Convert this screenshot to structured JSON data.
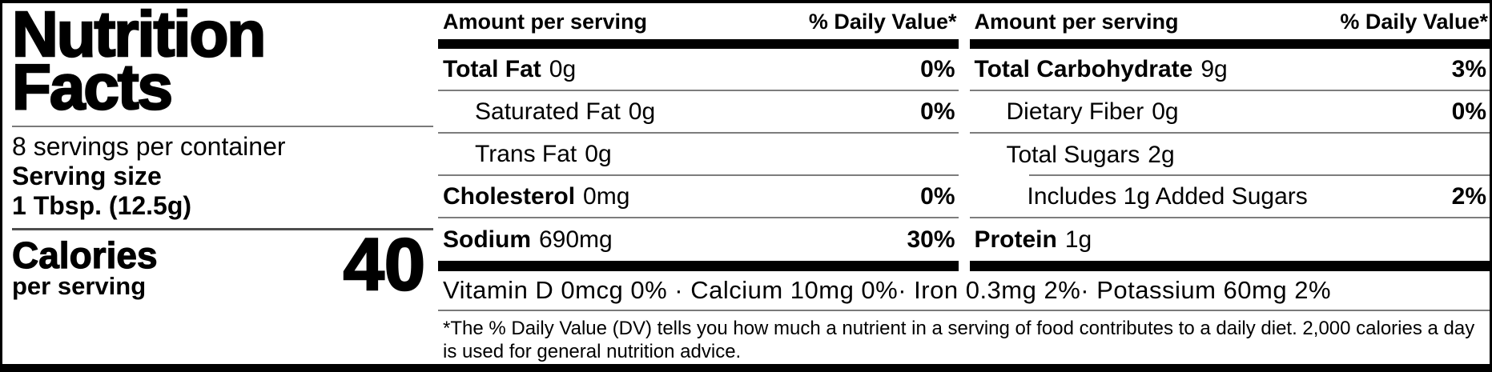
{
  "left_panel": {
    "title_line1": "Nutrition",
    "title_line2": "Facts",
    "servings_per_container": "8 servings per container",
    "serving_size_label": "Serving size",
    "serving_size_value": "1 Tbsp. (12.5g)",
    "calories_label": "Calories",
    "calories_sublabel": "per serving",
    "calories_value": "40"
  },
  "col_left": {
    "header_amount": "Amount per serving",
    "header_dv": "% Daily Value*",
    "rows": [
      {
        "name": "Total Fat",
        "amount": "0g",
        "dv": "0%"
      },
      {
        "name": "Saturated Fat",
        "amount": "0g",
        "dv": "0%"
      },
      {
        "name": "Trans Fat",
        "amount": "0g",
        "dv": ""
      },
      {
        "name": "Cholesterol",
        "amount": "0mg",
        "dv": "0%"
      },
      {
        "name": "Sodium",
        "amount": "690mg",
        "dv": "30%"
      }
    ]
  },
  "col_right": {
    "header_amount": "Amount per serving",
    "header_dv": "% Daily Value*",
    "rows": [
      {
        "name": "Total Carbohydrate",
        "amount": "9g",
        "dv": "3%"
      },
      {
        "name": "Dietary Fiber",
        "amount": "0g",
        "dv": "0%"
      },
      {
        "name": "Total Sugars",
        "amount": "2g",
        "dv": ""
      },
      {
        "name": "Includes 1g Added Sugars",
        "amount": "",
        "dv": "2%"
      },
      {
        "name": "Protein",
        "amount": "1g",
        "dv": ""
      }
    ]
  },
  "micronutrients": "Vitamin D 0mcg 0%  · Calcium 10mg 0%· Iron 0.3mg 2%· Potassium 60mg 2%",
  "footnote": "*The % Daily Value (DV) tells you how much a nutrient in a serving of food contributes to a daily diet. 2,000 calories a day is used for general nutrition advice.",
  "colors": {
    "ink": "#000000",
    "thin_rule": "#7d7d7d",
    "background": "#ffffff"
  }
}
